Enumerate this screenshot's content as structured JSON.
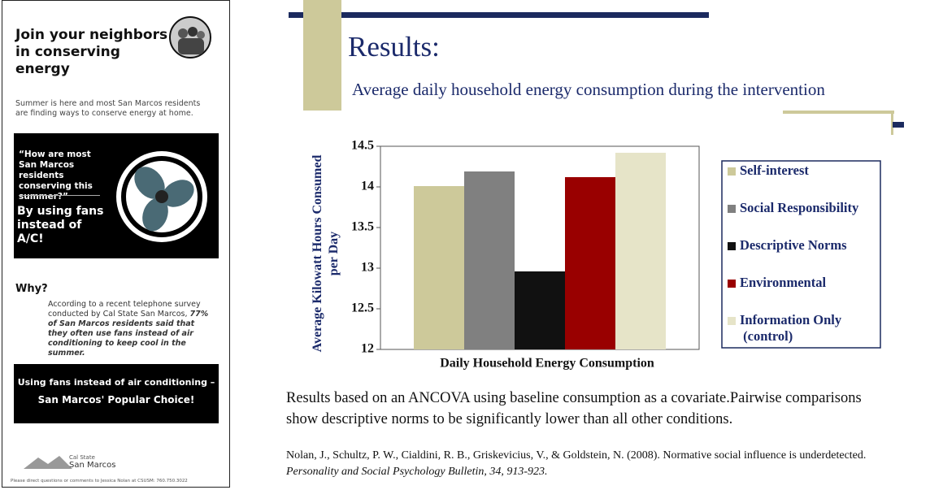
{
  "flyer": {
    "title": "Join your neighbors in conserving energy",
    "intro": "Summer is here and most San Marcos residents are finding ways to conserve energy at home.",
    "quote": "“How are most San Marcos residents conserving this summer?”",
    "answer": "By using fans instead of A/C!",
    "why_heading": "Why?",
    "why_text": "According to a recent telephone survey conducted by Cal State San Marcos,",
    "why_emphasis": "77% of San Marcos residents said that they often use fans instead of air conditioning to keep cool in the summer.",
    "banner_line1": "Using fans instead of air conditioning –",
    "banner_line2": "San Marcos' Popular Choice!",
    "logo_top": "Cal State",
    "logo_bottom": "San Marcos",
    "footer": "Please direct questions or comments to Jessica Nolan at CSUSM: 760.750.3022"
  },
  "slide": {
    "heading": "Results:",
    "subtitle": "Average daily household energy consumption during the intervention",
    "note": "Results based on an ANCOVA using baseline consumption as a covariate.Pairwise comparisons show descriptive norms to be significantly lower than all other conditions.",
    "citation": "Nolan, J., Schultz, P. W., Cialdini, R. B., Griskevicius, V., & Goldstein, N. (2008). Normative social influence is underdetected.",
    "citation_journal": "Personality and Social Psychology Bulletin, 34, 913-923."
  },
  "chart_data": {
    "type": "bar",
    "x_label": "Daily Household Energy Consumption",
    "y_label": "Average Kilowatt Hours Consumed per Day",
    "categories": [
      null
    ],
    "series": [
      {
        "name": "Self-interest",
        "color": "#cdc99a",
        "values": [
          14.01
        ]
      },
      {
        "name": "Social Responsibility",
        "color": "#808080",
        "values": [
          14.19
        ]
      },
      {
        "name": "Descriptive Norms",
        "color": "#111111",
        "values": [
          12.96
        ]
      },
      {
        "name": "Environmental",
        "color": "#990000",
        "values": [
          14.12
        ]
      },
      {
        "name": "Information Only (control)",
        "color": "#e6e4c8",
        "values": [
          14.42
        ]
      }
    ],
    "ylim": [
      12,
      14.5
    ],
    "yticks": [
      12,
      12.5,
      13,
      13.5,
      14,
      14.5
    ]
  }
}
